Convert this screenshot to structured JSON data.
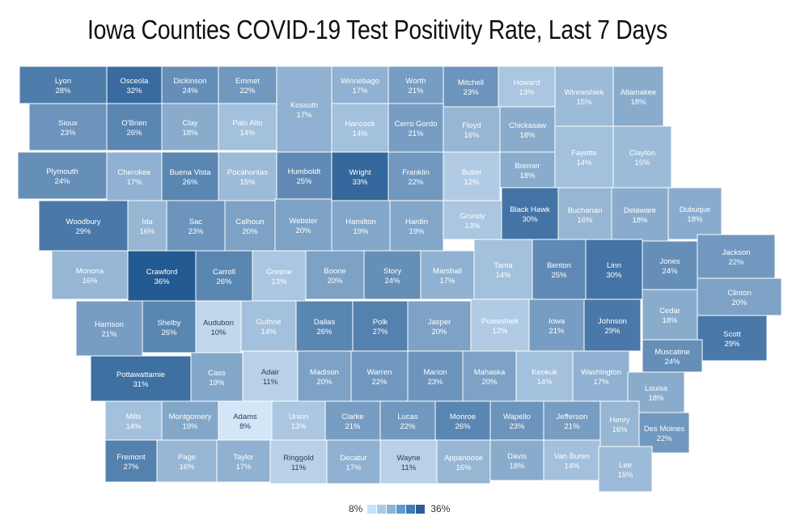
{
  "title": "Iowa Counties COVID-19 Test Positivity Rate, Last 7 Days",
  "legend": {
    "min_label": "8%",
    "max_label": "36%",
    "colors": [
      "#c9e1f4",
      "#a7cbe9",
      "#86b3dc",
      "#6299cc",
      "#3f7bb4",
      "#2a5e96"
    ]
  },
  "color_scale": {
    "min": 8,
    "max": 36,
    "low_color": "#d2e6f7",
    "high_color": "#245a92",
    "text_light": "#ffffff",
    "text_dark": "#2a3f55"
  },
  "counties": [
    {
      "name": "Lyon",
      "rate": "28%"
    },
    {
      "name": "Osceola",
      "rate": "32%"
    },
    {
      "name": "Dickinson",
      "rate": "24%"
    },
    {
      "name": "Emmet",
      "rate": "22%"
    },
    {
      "name": "Kossuth",
      "rate": "17%"
    },
    {
      "name": "Winnebago",
      "rate": "17%"
    },
    {
      "name": "Worth",
      "rate": "21%"
    },
    {
      "name": "Mitchell",
      "rate": "23%"
    },
    {
      "name": "Howard",
      "rate": "13%"
    },
    {
      "name": "Winneshiek",
      "rate": "15%"
    },
    {
      "name": "Allamakee",
      "rate": "18%"
    },
    {
      "name": "Sioux",
      "rate": "23%"
    },
    {
      "name": "O'Brien",
      "rate": "26%"
    },
    {
      "name": "Clay",
      "rate": "18%"
    },
    {
      "name": "Palo Alto",
      "rate": "14%"
    },
    {
      "name": "Hancock",
      "rate": "14%"
    },
    {
      "name": "Cerro Gordo",
      "rate": "21%"
    },
    {
      "name": "Floyd",
      "rate": "16%"
    },
    {
      "name": "Chickasaw",
      "rate": "18%"
    },
    {
      "name": "Fayette",
      "rate": "14%"
    },
    {
      "name": "Clayton",
      "rate": "15%"
    },
    {
      "name": "Plymouth",
      "rate": "24%"
    },
    {
      "name": "Cherokee",
      "rate": "17%"
    },
    {
      "name": "Buena Vista",
      "rate": "26%"
    },
    {
      "name": "Pocahontas",
      "rate": "15%"
    },
    {
      "name": "Humboldt",
      "rate": "25%"
    },
    {
      "name": "Wright",
      "rate": "33%"
    },
    {
      "name": "Franklin",
      "rate": "22%"
    },
    {
      "name": "Butler",
      "rate": "12%"
    },
    {
      "name": "Bremer",
      "rate": "18%"
    },
    {
      "name": "Woodbury",
      "rate": "29%"
    },
    {
      "name": "Ida",
      "rate": "16%"
    },
    {
      "name": "Sac",
      "rate": "23%"
    },
    {
      "name": "Calhoun",
      "rate": "20%"
    },
    {
      "name": "Webster",
      "rate": "20%"
    },
    {
      "name": "Hamilton",
      "rate": "19%"
    },
    {
      "name": "Hardin",
      "rate": "19%"
    },
    {
      "name": "Grundy",
      "rate": "13%"
    },
    {
      "name": "Black Hawk",
      "rate": "30%"
    },
    {
      "name": "Buchanan",
      "rate": "16%"
    },
    {
      "name": "Delaware",
      "rate": "18%"
    },
    {
      "name": "Dubuque",
      "rate": "18%"
    },
    {
      "name": "Monona",
      "rate": "16%"
    },
    {
      "name": "Crawford",
      "rate": "36%"
    },
    {
      "name": "Carroll",
      "rate": "26%"
    },
    {
      "name": "Greene",
      "rate": "13%"
    },
    {
      "name": "Boone",
      "rate": "20%"
    },
    {
      "name": "Story",
      "rate": "24%"
    },
    {
      "name": "Marshall",
      "rate": "17%"
    },
    {
      "name": "Tama",
      "rate": "14%"
    },
    {
      "name": "Benton",
      "rate": "25%"
    },
    {
      "name": "Linn",
      "rate": "30%"
    },
    {
      "name": "Jones",
      "rate": "24%"
    },
    {
      "name": "Jackson",
      "rate": "22%"
    },
    {
      "name": "Clinton",
      "rate": "20%"
    },
    {
      "name": "Harrison",
      "rate": "21%"
    },
    {
      "name": "Shelby",
      "rate": "26%"
    },
    {
      "name": "Audubon",
      "rate": "10%"
    },
    {
      "name": "Guthrie",
      "rate": "14%"
    },
    {
      "name": "Dallas",
      "rate": "26%"
    },
    {
      "name": "Polk",
      "rate": "27%"
    },
    {
      "name": "Jasper",
      "rate": "20%"
    },
    {
      "name": "Poweshiek",
      "rate": "12%"
    },
    {
      "name": "Iowa",
      "rate": "21%"
    },
    {
      "name": "Johnson",
      "rate": "29%"
    },
    {
      "name": "Cedar",
      "rate": "18%"
    },
    {
      "name": "Scott",
      "rate": "29%"
    },
    {
      "name": "Pottawattamie",
      "rate": "31%"
    },
    {
      "name": "Cass",
      "rate": "19%"
    },
    {
      "name": "Adair",
      "rate": "11%"
    },
    {
      "name": "Madison",
      "rate": "20%"
    },
    {
      "name": "Warren",
      "rate": "22%"
    },
    {
      "name": "Marion",
      "rate": "23%"
    },
    {
      "name": "Mahaska",
      "rate": "20%"
    },
    {
      "name": "Keokuk",
      "rate": "14%"
    },
    {
      "name": "Washington",
      "rate": "17%"
    },
    {
      "name": "Muscatine",
      "rate": "24%"
    },
    {
      "name": "Louisa",
      "rate": "18%"
    },
    {
      "name": "Mills",
      "rate": "14%"
    },
    {
      "name": "Montgomery",
      "rate": "19%"
    },
    {
      "name": "Adams",
      "rate": "8%"
    },
    {
      "name": "Union",
      "rate": "13%"
    },
    {
      "name": "Clarke",
      "rate": "21%"
    },
    {
      "name": "Lucas",
      "rate": "22%"
    },
    {
      "name": "Monroe",
      "rate": "26%"
    },
    {
      "name": "Wapello",
      "rate": "23%"
    },
    {
      "name": "Jefferson",
      "rate": "21%"
    },
    {
      "name": "Henry",
      "rate": "16%"
    },
    {
      "name": "Des Moines",
      "rate": "22%"
    },
    {
      "name": "Fremont",
      "rate": "27%"
    },
    {
      "name": "Page",
      "rate": "16%"
    },
    {
      "name": "Taylor",
      "rate": "17%"
    },
    {
      "name": "Ringgold",
      "rate": "11%"
    },
    {
      "name": "Decatur",
      "rate": "17%"
    },
    {
      "name": "Wayne",
      "rate": "11%"
    },
    {
      "name": "Appanoose",
      "rate": "16%"
    },
    {
      "name": "Davis",
      "rate": "18%"
    },
    {
      "name": "Van Buren",
      "rate": "14%"
    },
    {
      "name": "Lee",
      "rate": "15%"
    }
  ]
}
